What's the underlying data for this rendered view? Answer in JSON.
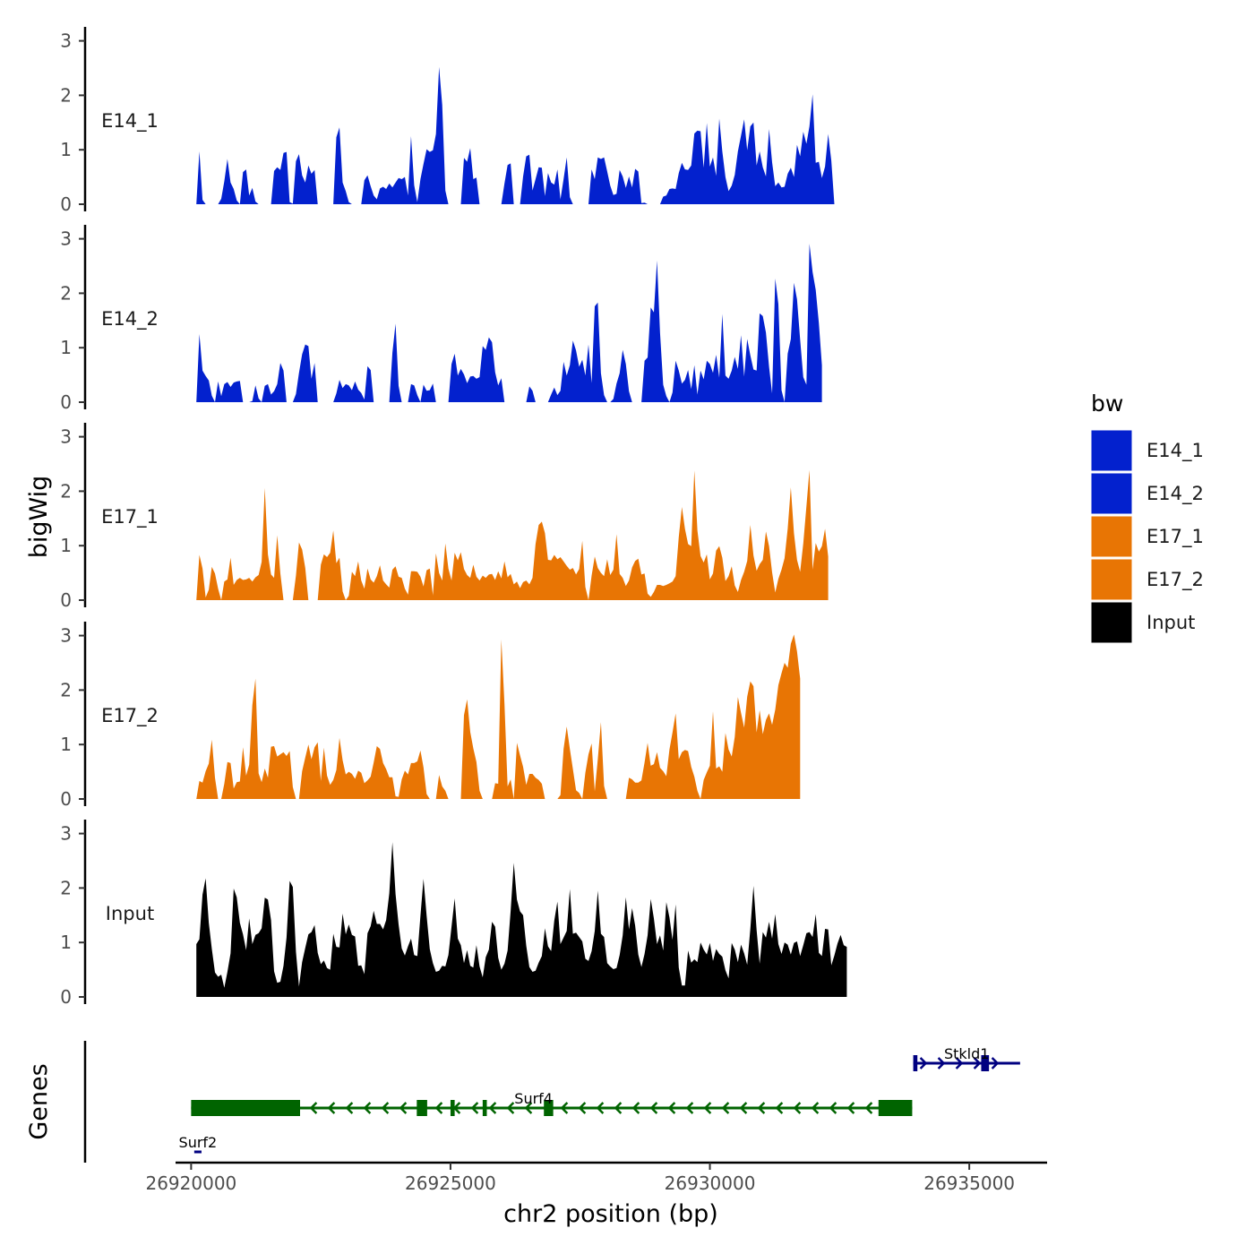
{
  "chart_data": {
    "type": "area",
    "title": "",
    "xlabel": "chr2 position (bp)",
    "ylabel": "bigWig",
    "genes_label": "Genes",
    "xlim": [
      26919700,
      26936500
    ],
    "x_ticks": [
      26920000,
      26925000,
      26930000,
      26935000
    ],
    "x_tick_labels": [
      "26920000",
      "26925000",
      "26930000",
      "26935000"
    ],
    "ylim": [
      0,
      3
    ],
    "y_ticks": [
      0,
      1,
      2,
      3
    ],
    "y_tick_labels": [
      "0",
      "1",
      "2",
      "3"
    ],
    "legend_title": "bw",
    "x_start": 26920100,
    "x_step": 60,
    "series": [
      {
        "name": "E14_1",
        "color": "#0321CE",
        "values": [
          0,
          0.97,
          0.08,
          0,
          0,
          0,
          0,
          0,
          0.1,
          0.42,
          0.83,
          0.4,
          0.28,
          0.07,
          0,
          0.59,
          0.64,
          0.16,
          0.3,
          0.05,
          0,
          0,
          0,
          0,
          0,
          0.61,
          0.68,
          0.63,
          0.94,
          0.96,
          0.04,
          0.01,
          0.79,
          0.92,
          0.53,
          0.4,
          0.71,
          0.56,
          0.63,
          0,
          0,
          0,
          0,
          0,
          0,
          1.23,
          1.41,
          0.4,
          0.24,
          0.04,
          0,
          0,
          0,
          0,
          0.44,
          0.53,
          0.33,
          0.16,
          0.09,
          0.29,
          0.32,
          0.28,
          0.38,
          0.31,
          0.4,
          0.48,
          0.46,
          0.5,
          0.16,
          1.25,
          0.35,
          0.04,
          0.46,
          0.74,
          1.01,
          0.96,
          0.99,
          1.29,
          2.52,
          1.82,
          0.25,
          0,
          0,
          0,
          0,
          0,
          0.85,
          0.78,
          1.03,
          0.46,
          0.49,
          0,
          0,
          0,
          0,
          0,
          0,
          0,
          0,
          0.38,
          0.72,
          0.75,
          0,
          0,
          0,
          0.51,
          0.88,
          0.91,
          0.25,
          0.46,
          0.68,
          0.67,
          0.15,
          0.57,
          0.4,
          0.36,
          0.64,
          0.09,
          0.46,
          0.86,
          0.13,
          0,
          0,
          0,
          0,
          0,
          0,
          0.64,
          0.46,
          0.86,
          0.83,
          0.86,
          0.6,
          0.34,
          0.17,
          0.19,
          0.63,
          0.51,
          0.3,
          0.51,
          0.31,
          0.65,
          0.6,
          0.02,
          0.03,
          0,
          0,
          0,
          0,
          0,
          0.14,
          0.16,
          0.28,
          0.29,
          0.28,
          0.57,
          0.76,
          0.64,
          0.63,
          0.71,
          1.3,
          1.35,
          1.34,
          0.67,
          1.49,
          0.69,
          0.86,
          0.52,
          1.57,
          0.97,
          0.5,
          0.24,
          0.34,
          0.54,
          0.97,
          1.26,
          1.56,
          0.99,
          1.43,
          1.5,
          0.71,
          0.97,
          0.68,
          0.51,
          1.38,
          0.77,
          0.33,
          0.4,
          0.31,
          0.32,
          0.56,
          0.67,
          0.5,
          1.09,
          0.88,
          1.33,
          1.11,
          1.43,
          2.02,
          0.76,
          0.78,
          0.48,
          0.69,
          1.29,
          0.8,
          0
        ]
      },
      {
        "name": "E14_2",
        "color": "#0321CE",
        "values": [
          0,
          1.25,
          0.58,
          0.48,
          0.4,
          0.12,
          0,
          0.38,
          0.11,
          0.33,
          0.37,
          0.28,
          0.36,
          0.38,
          0.39,
          0,
          0,
          0,
          0.02,
          0.31,
          0.07,
          0,
          0.3,
          0.33,
          0.14,
          0.2,
          0.33,
          0.72,
          0.58,
          0,
          0,
          0,
          0.15,
          0.54,
          0.88,
          1.06,
          1.03,
          0.43,
          0.72,
          0,
          0,
          0,
          0,
          0,
          0,
          0.16,
          0.41,
          0.26,
          0.33,
          0.31,
          0.22,
          0.38,
          0.23,
          0.17,
          0.05,
          0.66,
          0.59,
          0,
          0,
          0,
          0,
          0,
          0,
          0.91,
          1.44,
          0.3,
          0,
          0,
          0,
          0.33,
          0.31,
          0.13,
          0,
          0.32,
          0.21,
          0.22,
          0.34,
          0,
          0,
          0,
          0,
          0,
          0.7,
          0.89,
          0.49,
          0.61,
          0.51,
          0.35,
          0.47,
          0.48,
          0.43,
          0.46,
          1.03,
          0.96,
          1.19,
          1.1,
          0.55,
          0.31,
          0.44,
          0,
          0,
          0,
          0,
          0,
          0,
          0,
          0,
          0.29,
          0.21,
          0,
          0,
          0,
          0,
          0,
          0.14,
          0.27,
          0.13,
          0.21,
          0.74,
          0.49,
          0.68,
          1.13,
          0.95,
          0.65,
          0.78,
          0.49,
          1.06,
          0.35,
          1.76,
          1.83,
          0.53,
          0.13,
          0,
          0,
          0.06,
          0.34,
          0.53,
          0.96,
          0.7,
          0.2,
          0,
          0,
          0,
          0,
          0.76,
          0.82,
          1.74,
          1.65,
          2.6,
          1.27,
          0.32,
          0.11,
          0,
          0.18,
          0.76,
          0.58,
          0.34,
          0.41,
          0.59,
          0.24,
          0.68,
          0.14,
          0.58,
          0.42,
          0.76,
          0.7,
          0.54,
          0.87,
          0.45,
          1.62,
          0.49,
          0.43,
          0.58,
          0.83,
          0.61,
          1.23,
          0.47,
          1.16,
          0.86,
          0.6,
          0.58,
          1.63,
          1.58,
          1.28,
          0.65,
          0.16,
          2.27,
          1.8,
          0.22,
          0,
          0.89,
          1.16,
          2.19,
          1.89,
          1.15,
          0.46,
          0.32,
          2.91,
          2.39,
          2.06,
          1.45,
          0.68
        ]
      },
      {
        "name": "E17_1",
        "color": "#E87504",
        "values": [
          0,
          0.83,
          0.58,
          0.05,
          0.19,
          0.61,
          0.49,
          0.21,
          0,
          0.34,
          0.38,
          0.78,
          0.28,
          0.37,
          0.41,
          0.37,
          0.38,
          0.41,
          0.34,
          0.42,
          0.46,
          0.7,
          2.06,
          0.84,
          0.47,
          0.41,
          1.19,
          0.49,
          0,
          0,
          0,
          0,
          0.45,
          1.06,
          0.93,
          0.59,
          0,
          0,
          0,
          0,
          0.65,
          0.84,
          0.79,
          0.87,
          1.28,
          0.68,
          0.78,
          0.16,
          0,
          0.08,
          0.52,
          0.44,
          0.71,
          0.36,
          0.21,
          0.58,
          0.38,
          0.32,
          0.44,
          0.64,
          0.36,
          0.29,
          0.23,
          0.56,
          0.62,
          0.43,
          0.41,
          0.21,
          0.1,
          0.53,
          0.53,
          0.52,
          0.43,
          0.25,
          0.55,
          0.58,
          0.09,
          0.86,
          0.5,
          0.36,
          1.04,
          0.58,
          0.36,
          0.87,
          0.73,
          0.88,
          0.57,
          0.46,
          0.41,
          0.65,
          0.43,
          0.36,
          0.45,
          0.41,
          0.47,
          0.48,
          0.37,
          0.53,
          0.4,
          0.71,
          0.42,
          0.48,
          0.29,
          0.34,
          0.22,
          0.33,
          0.36,
          0.29,
          0.41,
          1.03,
          1.38,
          1.44,
          1.23,
          0.74,
          0.73,
          0.83,
          0.75,
          0.79,
          0.71,
          0.63,
          0.56,
          0.59,
          0.47,
          0.57,
          1.09,
          0.24,
          0,
          0.45,
          0.8,
          0.59,
          0.5,
          0.44,
          0.75,
          0.46,
          0.56,
          1.21,
          0.48,
          0.41,
          0.26,
          0.36,
          0.6,
          0.72,
          0.76,
          0.47,
          0.49,
          0.12,
          0.06,
          0.15,
          0.28,
          0.28,
          0.26,
          0.28,
          0.31,
          0.34,
          0.44,
          1.16,
          1.71,
          1.31,
          1.03,
          0.99,
          2.38,
          1.28,
          0.81,
          0.69,
          0.84,
          0.38,
          0.49,
          0.91,
          0.99,
          0.78,
          0.35,
          0.44,
          0.62,
          0.27,
          0.15,
          0.37,
          0.52,
          0.72,
          1.38,
          0.82,
          0.54,
          0.66,
          0.74,
          1.26,
          0.99,
          0.51,
          0.14,
          0.39,
          0.56,
          0.77,
          1.31,
          2.07,
          1.23,
          0.74,
          0.52,
          1.04,
          1.72,
          2.39,
          0.56,
          1.05,
          0.89,
          0.99,
          1.31,
          0.8
        ]
      },
      {
        "name": "E17_2",
        "color": "#E87504",
        "values": [
          0,
          0.33,
          0.3,
          0.51,
          0.65,
          1.09,
          0.39,
          0,
          0,
          0.28,
          0.68,
          0.66,
          0.19,
          0.31,
          0.32,
          0.95,
          0.43,
          0.63,
          1.72,
          2.21,
          0.47,
          0.31,
          0.56,
          0.39,
          0.96,
          0.97,
          0.78,
          0.82,
          0.86,
          0.79,
          0.88,
          0.22,
          0,
          0,
          0.51,
          0.76,
          1,
          0.73,
          0.95,
          1.04,
          0.33,
          0.94,
          0.43,
          0.26,
          0.35,
          0.53,
          1.12,
          0.71,
          0.45,
          0.5,
          0.46,
          0.37,
          0.52,
          0.48,
          0.29,
          0.34,
          0.41,
          0.67,
          0.97,
          0.92,
          0.66,
          0.55,
          0.4,
          0.4,
          0.05,
          0.04,
          0.36,
          0.52,
          0.45,
          0.66,
          0.66,
          0.69,
          0.89,
          0.58,
          0.09,
          0,
          0,
          0,
          0.44,
          0.23,
          0.15,
          0,
          0,
          0,
          0,
          0,
          1.54,
          1.83,
          1.23,
          0.93,
          0.68,
          0.15,
          0,
          0,
          0,
          0,
          0.29,
          0.28,
          2.93,
          1.75,
          0.23,
          0.36,
          0,
          1.03,
          0.8,
          0.59,
          0.26,
          0.46,
          0.46,
          0.39,
          0.35,
          0.28,
          0,
          0,
          0,
          0,
          0,
          0.07,
          0.92,
          1.33,
          0.92,
          0.55,
          0.16,
          0.11,
          0,
          0.48,
          0.82,
          1.02,
          0.14,
          0.73,
          1.41,
          0.24,
          0,
          0,
          0,
          0,
          0,
          0,
          0,
          0.39,
          0.36,
          0.3,
          0.3,
          0.34,
          0.67,
          1.03,
          0.61,
          0.64,
          0.86,
          0.57,
          0.51,
          0.42,
          0.91,
          1.22,
          1.57,
          0.73,
          0.86,
          0.9,
          0.88,
          0.59,
          0.41,
          0.15,
          0,
          0.35,
          0.49,
          0.61,
          1.61,
          0.56,
          0.6,
          0.5,
          1.21,
          0.91,
          0.78,
          1.14,
          1.87,
          1.58,
          1.31,
          1.88,
          2.16,
          2.07,
          1.22,
          1.63,
          1.19,
          1.45,
          1.57,
          1.36,
          1.64,
          2.09,
          2.31,
          2.5,
          2.41,
          2.85,
          3.02,
          2.71,
          2.21
        ]
      },
      {
        "name": "Input",
        "color": "#000000",
        "values": [
          0.97,
          1.06,
          1.88,
          2.18,
          1.36,
          0.88,
          0.45,
          0.37,
          0.41,
          0.17,
          0.46,
          0.8,
          1.99,
          1.83,
          1.36,
          1.15,
          0.86,
          1.44,
          0.97,
          1.14,
          1.17,
          1.26,
          1.82,
          1.79,
          1.41,
          0.47,
          0.26,
          0.28,
          0.57,
          1.09,
          2.13,
          2.02,
          0.83,
          0.19,
          0.64,
          0.9,
          1.15,
          1.19,
          1.32,
          0.81,
          0.6,
          0.67,
          0.53,
          0.5,
          1.16,
          0.92,
          0.91,
          1.53,
          1.15,
          1.33,
          1.14,
          1.11,
          0.57,
          0.58,
          0.42,
          1.17,
          1.3,
          1.58,
          1.34,
          1.34,
          1.24,
          1.41,
          1.9,
          2.84,
          1.89,
          1.33,
          0.89,
          0.76,
          0.93,
          1.07,
          0.77,
          0.75,
          1.49,
          2.17,
          1.49,
          0.88,
          0.62,
          0.46,
          0.48,
          0.57,
          0.56,
          0.77,
          1.29,
          1.81,
          1.07,
          0.95,
          0.62,
          0.86,
          0.57,
          0.54,
          0.95,
          0.56,
          0.36,
          0.73,
          0.87,
          1.38,
          1.29,
          0.72,
          0.5,
          0.61,
          0.85,
          1.58,
          2.46,
          1.79,
          1.57,
          1.5,
          0.94,
          0.55,
          0.46,
          0.48,
          0.63,
          0.75,
          1.26,
          0.93,
          0.84,
          1.4,
          1.75,
          0.97,
          1.09,
          1.21,
          1.98,
          1.16,
          1.18,
          1.1,
          1.02,
          0.7,
          0.66,
          0.84,
          1.21,
          1.95,
          1.16,
          1.1,
          0.62,
          0.56,
          0.51,
          0.53,
          0.77,
          1.13,
          1.83,
          1.24,
          1.63,
          1.31,
          0.78,
          0.55,
          0.79,
          1.13,
          1.8,
          1.44,
          0.97,
          1.13,
          0.85,
          1.74,
          1.46,
          1.05,
          1.7,
          0.54,
          0.21,
          0.21,
          0.85,
          0.63,
          0.69,
          0.64,
          1.0,
          0.87,
          0.78,
          0.99,
          0.66,
          0.88,
          0.79,
          0.74,
          0.49,
          0.34,
          0.99,
          0.87,
          0.64,
          0.96,
          0.8,
          0.59,
          1.25,
          2.04,
          1.23,
          0.61,
          1.19,
          1.09,
          1.38,
          1.07,
          1.52,
          0.97,
          0.79,
          1.0,
          0.96,
          0.78,
          0.99,
          1.02,
          0.75,
          0.95,
          1.17,
          1.19,
          1.1,
          1.52,
          0.81,
          0.75,
          1.25,
          1.24,
          0.58,
          0.76,
          0.98,
          1.14,
          0.95,
          0.92
        ]
      }
    ],
    "genes": [
      {
        "name": "Surf2",
        "start": 26920060,
        "end": 26920200,
        "strand": "+",
        "color": "#000080",
        "row": 2,
        "exons": []
      },
      {
        "name": "Surf4",
        "start": 26920000,
        "end": 26933900,
        "strand": "-",
        "color": "#006400",
        "row": 1,
        "exons": [
          [
            26920000,
            26922100
          ],
          [
            26924350,
            26924550
          ],
          [
            26925000,
            26925080
          ],
          [
            26925620,
            26925700
          ],
          [
            26926800,
            26926980
          ],
          [
            26933250,
            26933900
          ]
        ]
      },
      {
        "name": "Stkld1",
        "start": 26933920,
        "end": 26935980,
        "strand": "+",
        "color": "#000080",
        "row": 0,
        "exons": [
          [
            26933920,
            26934000
          ],
          [
            26935230,
            26935380
          ]
        ]
      }
    ]
  }
}
